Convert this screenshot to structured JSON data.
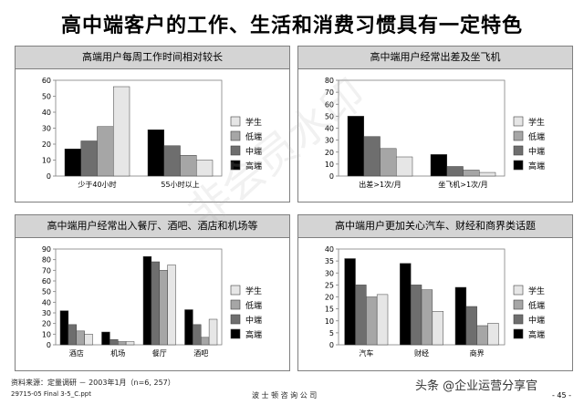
{
  "title": "高中端客户的工作、生活和消费习惯具有一定特色",
  "watermark": "非会员水印",
  "footer": {
    "source": "资料来源：定量调研 － 2003年1月（n=6, 257）",
    "file": "29715-05 Final 3-5_C.ppt",
    "company": "波 士 顿 咨 询 公 司",
    "social": "头条 @企业运营分享官",
    "page": "- 45 -"
  },
  "colors": {
    "学生": "#e6e6e6",
    "低端": "#a6a6a6",
    "中端": "#6e6e6e",
    "高端": "#000000",
    "header_bg": "#d4d4d4"
  },
  "chart_data": [
    {
      "type": "bar",
      "title": "高端用户每周工作时间相对较长",
      "categories": [
        "少于40小时",
        "55小时以上"
      ],
      "ylim": [
        0,
        60
      ],
      "yticks": [
        0,
        10,
        20,
        30,
        40,
        50,
        60
      ],
      "series": [
        {
          "name": "高端",
          "values": [
            17,
            29
          ]
        },
        {
          "name": "中端",
          "values": [
            22,
            19
          ]
        },
        {
          "name": "低端",
          "values": [
            31,
            13
          ]
        },
        {
          "name": "学生",
          "values": [
            56,
            10
          ]
        }
      ],
      "legend": [
        "学生",
        "低端",
        "中端",
        "高端"
      ],
      "legend_position": "right"
    },
    {
      "type": "bar",
      "title": "高中端用户经常出差及坐飞机",
      "categories": [
        "出差>1次/月",
        "坐飞机>1次/月"
      ],
      "ylim": [
        0,
        80
      ],
      "yticks": [
        0,
        10,
        20,
        30,
        40,
        50,
        60,
        70,
        80
      ],
      "series": [
        {
          "name": "高端",
          "values": [
            50,
            18
          ]
        },
        {
          "name": "中端",
          "values": [
            33,
            8
          ]
        },
        {
          "name": "低端",
          "values": [
            23,
            5
          ]
        },
        {
          "name": "学生",
          "values": [
            16,
            3
          ]
        }
      ],
      "legend": [
        "学生",
        "低端",
        "中端",
        "高端"
      ],
      "legend_position": "right"
    },
    {
      "type": "bar",
      "title": "高中端用户经常出入餐厅、酒吧、酒店和机场等",
      "categories": [
        "酒店",
        "机场",
        "餐厅",
        "酒吧"
      ],
      "ylim": [
        0,
        90
      ],
      "yticks": [
        0,
        10,
        20,
        30,
        40,
        50,
        60,
        70,
        80,
        90
      ],
      "series": [
        {
          "name": "高端",
          "values": [
            32,
            12,
            83,
            33
          ]
        },
        {
          "name": "中端",
          "values": [
            19,
            5,
            78,
            19
          ]
        },
        {
          "name": "低端",
          "values": [
            13,
            3,
            70,
            7
          ]
        },
        {
          "name": "学生",
          "values": [
            10,
            3,
            75,
            24
          ]
        }
      ],
      "legend": [
        "学生",
        "低端",
        "中端",
        "高端"
      ],
      "legend_position": "right"
    },
    {
      "type": "bar",
      "title": "高中端用户更加关心汽车、财经和商界类话题",
      "categories": [
        "汽车",
        "财经",
        "商界"
      ],
      "ylim": [
        0,
        40
      ],
      "yticks": [
        0,
        5,
        10,
        15,
        20,
        25,
        30,
        35,
        40
      ],
      "series": [
        {
          "name": "高端",
          "values": [
            36,
            34,
            24
          ]
        },
        {
          "name": "中端",
          "values": [
            25,
            25,
            16
          ]
        },
        {
          "name": "低端",
          "values": [
            20,
            23,
            8
          ]
        },
        {
          "name": "学生",
          "values": [
            21,
            14,
            9
          ]
        }
      ],
      "legend": [
        "学生",
        "低端",
        "中端",
        "高端"
      ],
      "legend_position": "right"
    }
  ]
}
